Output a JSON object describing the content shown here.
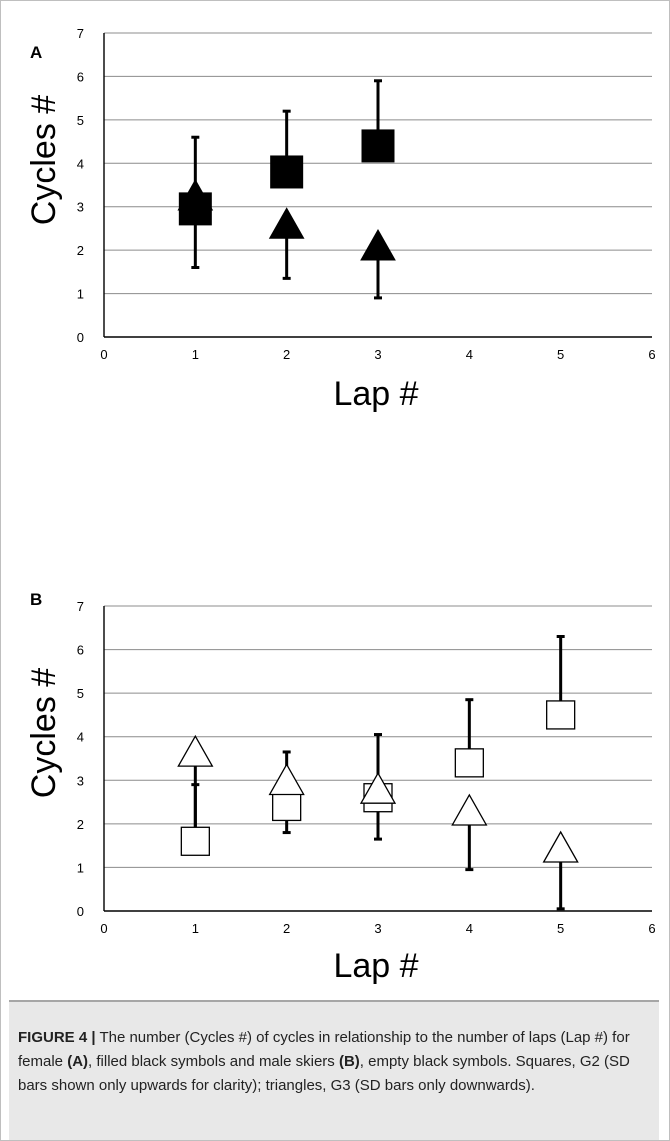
{
  "figure": {
    "caption_label": "FIGURE 4 |",
    "caption_parts": [
      " The number (Cycles #) of cycles in relationship to the number of laps (Lap #) for female ",
      "(A)",
      ", filled black symbols and male skiers ",
      "(B)",
      ", empty black symbols. Squares, G2 (SD bars shown only upwards for clarity); triangles, G3 (SD bars only downwards)."
    ]
  },
  "chart_data": [
    {
      "panel": "A",
      "type": "scatter",
      "xlabel": "Lap #",
      "ylabel": "Cycles #",
      "xlim": [
        0,
        6
      ],
      "ylim": [
        0,
        7
      ],
      "xticks": [
        0,
        1,
        2,
        3,
        4,
        5,
        6
      ],
      "yticks": [
        0,
        1,
        2,
        3,
        4,
        5,
        6,
        7
      ],
      "grid": "horizontal",
      "series": [
        {
          "marker": "square",
          "fill": "filled",
          "error_direction": "up",
          "points": [
            {
              "x": 1,
              "y": 2.95,
              "sd": 1.65
            },
            {
              "x": 2,
              "y": 3.8,
              "sd": 1.4
            },
            {
              "x": 3,
              "y": 4.4,
              "sd": 1.5
            }
          ]
        },
        {
          "marker": "triangle",
          "fill": "filled",
          "error_direction": "down",
          "points": [
            {
              "x": 1,
              "y": 3.2,
              "sd": 1.6
            },
            {
              "x": 2,
              "y": 2.55,
              "sd": 1.2
            },
            {
              "x": 3,
              "y": 2.05,
              "sd": 1.15
            }
          ]
        }
      ]
    },
    {
      "panel": "B",
      "type": "scatter",
      "xlabel": "Lap #",
      "ylabel": "Cycles #",
      "xlim": [
        0,
        6
      ],
      "ylim": [
        0,
        7
      ],
      "xticks": [
        0,
        1,
        2,
        3,
        4,
        5,
        6
      ],
      "yticks": [
        0,
        1,
        2,
        3,
        4,
        5,
        6,
        7
      ],
      "grid": "horizontal",
      "series": [
        {
          "marker": "square",
          "fill": "empty",
          "error_direction": "up",
          "points": [
            {
              "x": 1,
              "y": 1.6,
              "sd": 1.3
            },
            {
              "x": 2,
              "y": 2.4,
              "sd": 1.25
            },
            {
              "x": 3,
              "y": 2.6,
              "sd": 1.45
            },
            {
              "x": 4,
              "y": 3.4,
              "sd": 1.45
            },
            {
              "x": 5,
              "y": 4.5,
              "sd": 1.8
            }
          ]
        },
        {
          "marker": "triangle",
          "fill": "empty",
          "error_direction": "down",
          "points": [
            {
              "x": 1,
              "y": 3.6,
              "sd": 1.85
            },
            {
              "x": 2,
              "y": 2.95,
              "sd": 1.15
            },
            {
              "x": 3,
              "y": 2.75,
              "sd": 1.1
            },
            {
              "x": 4,
              "y": 2.25,
              "sd": 1.3
            },
            {
              "x": 5,
              "y": 1.4,
              "sd": 1.35
            }
          ]
        }
      ]
    }
  ]
}
